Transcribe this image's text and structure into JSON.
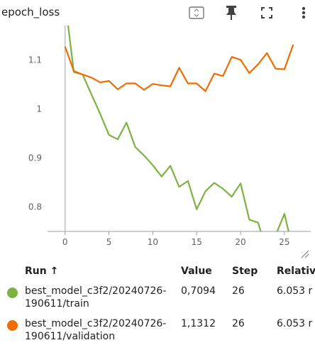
{
  "header": {
    "title": "epoch_loss",
    "icons": [
      "fit-domain-icon",
      "pin-icon",
      "fullscreen-icon",
      "more-vert-icon"
    ]
  },
  "chart_data": {
    "type": "line",
    "title": "epoch_loss",
    "xlim": [
      -2,
      28
    ],
    "ylim": [
      0.75,
      1.17
    ],
    "xticks": [
      0,
      5,
      10,
      15,
      20,
      25
    ],
    "yticks": [
      0.8,
      0.9,
      1,
      1.1
    ],
    "ytick_labels": [
      "0.8",
      "0.9",
      "1",
      "1.1"
    ],
    "grid": false,
    "series": [
      {
        "name": "best_model_c3f2/20240726-190611/train",
        "color": "#7cb342",
        "x": [
          0,
          1,
          2,
          3,
          4,
          5,
          6,
          7,
          8,
          9,
          10,
          11,
          12,
          13,
          14,
          15,
          16,
          17,
          18,
          19,
          20,
          21,
          22,
          23,
          24,
          25,
          26
        ],
        "y": [
          1.22,
          1.075,
          1.07,
          1.03,
          0.99,
          0.947,
          0.938,
          0.972,
          0.922,
          0.905,
          0.885,
          0.862,
          0.884,
          0.841,
          0.853,
          0.795,
          0.832,
          0.849,
          0.837,
          0.821,
          0.848,
          0.774,
          0.768,
          0.708,
          0.742,
          0.786,
          0.7094
        ]
      },
      {
        "name": "best_model_c3f2/20240726-190611/validation",
        "color": "#ef6c00",
        "x": [
          0,
          1,
          2,
          3,
          4,
          5,
          6,
          7,
          8,
          9,
          10,
          11,
          12,
          13,
          14,
          15,
          16,
          17,
          18,
          19,
          20,
          21,
          22,
          23,
          24,
          25,
          26
        ],
        "y": [
          1.127,
          1.077,
          1.07,
          1.064,
          1.054,
          1.057,
          1.04,
          1.052,
          1.052,
          1.039,
          1.051,
          1.048,
          1.046,
          1.084,
          1.052,
          1.052,
          1.036,
          1.072,
          1.067,
          1.106,
          1.1,
          1.073,
          1.091,
          1.114,
          1.082,
          1.081,
          1.1312
        ]
      }
    ]
  },
  "table": {
    "headers": {
      "run": "Run ↑",
      "value": "Value",
      "step": "Step",
      "relative": "Relativ"
    },
    "rows": [
      {
        "run_line1": "best_model_c3f2/20240726-",
        "run_line2": "190611/train",
        "value": "0,7094",
        "step": "26",
        "relative": "6.053 r",
        "color": "#7cb342"
      },
      {
        "run_line1": "best_model_c3f2/20240726-",
        "run_line2": "190611/validation",
        "value": "1,1312",
        "step": "26",
        "relative": "6.053 r",
        "color": "#ef6c00"
      }
    ]
  }
}
